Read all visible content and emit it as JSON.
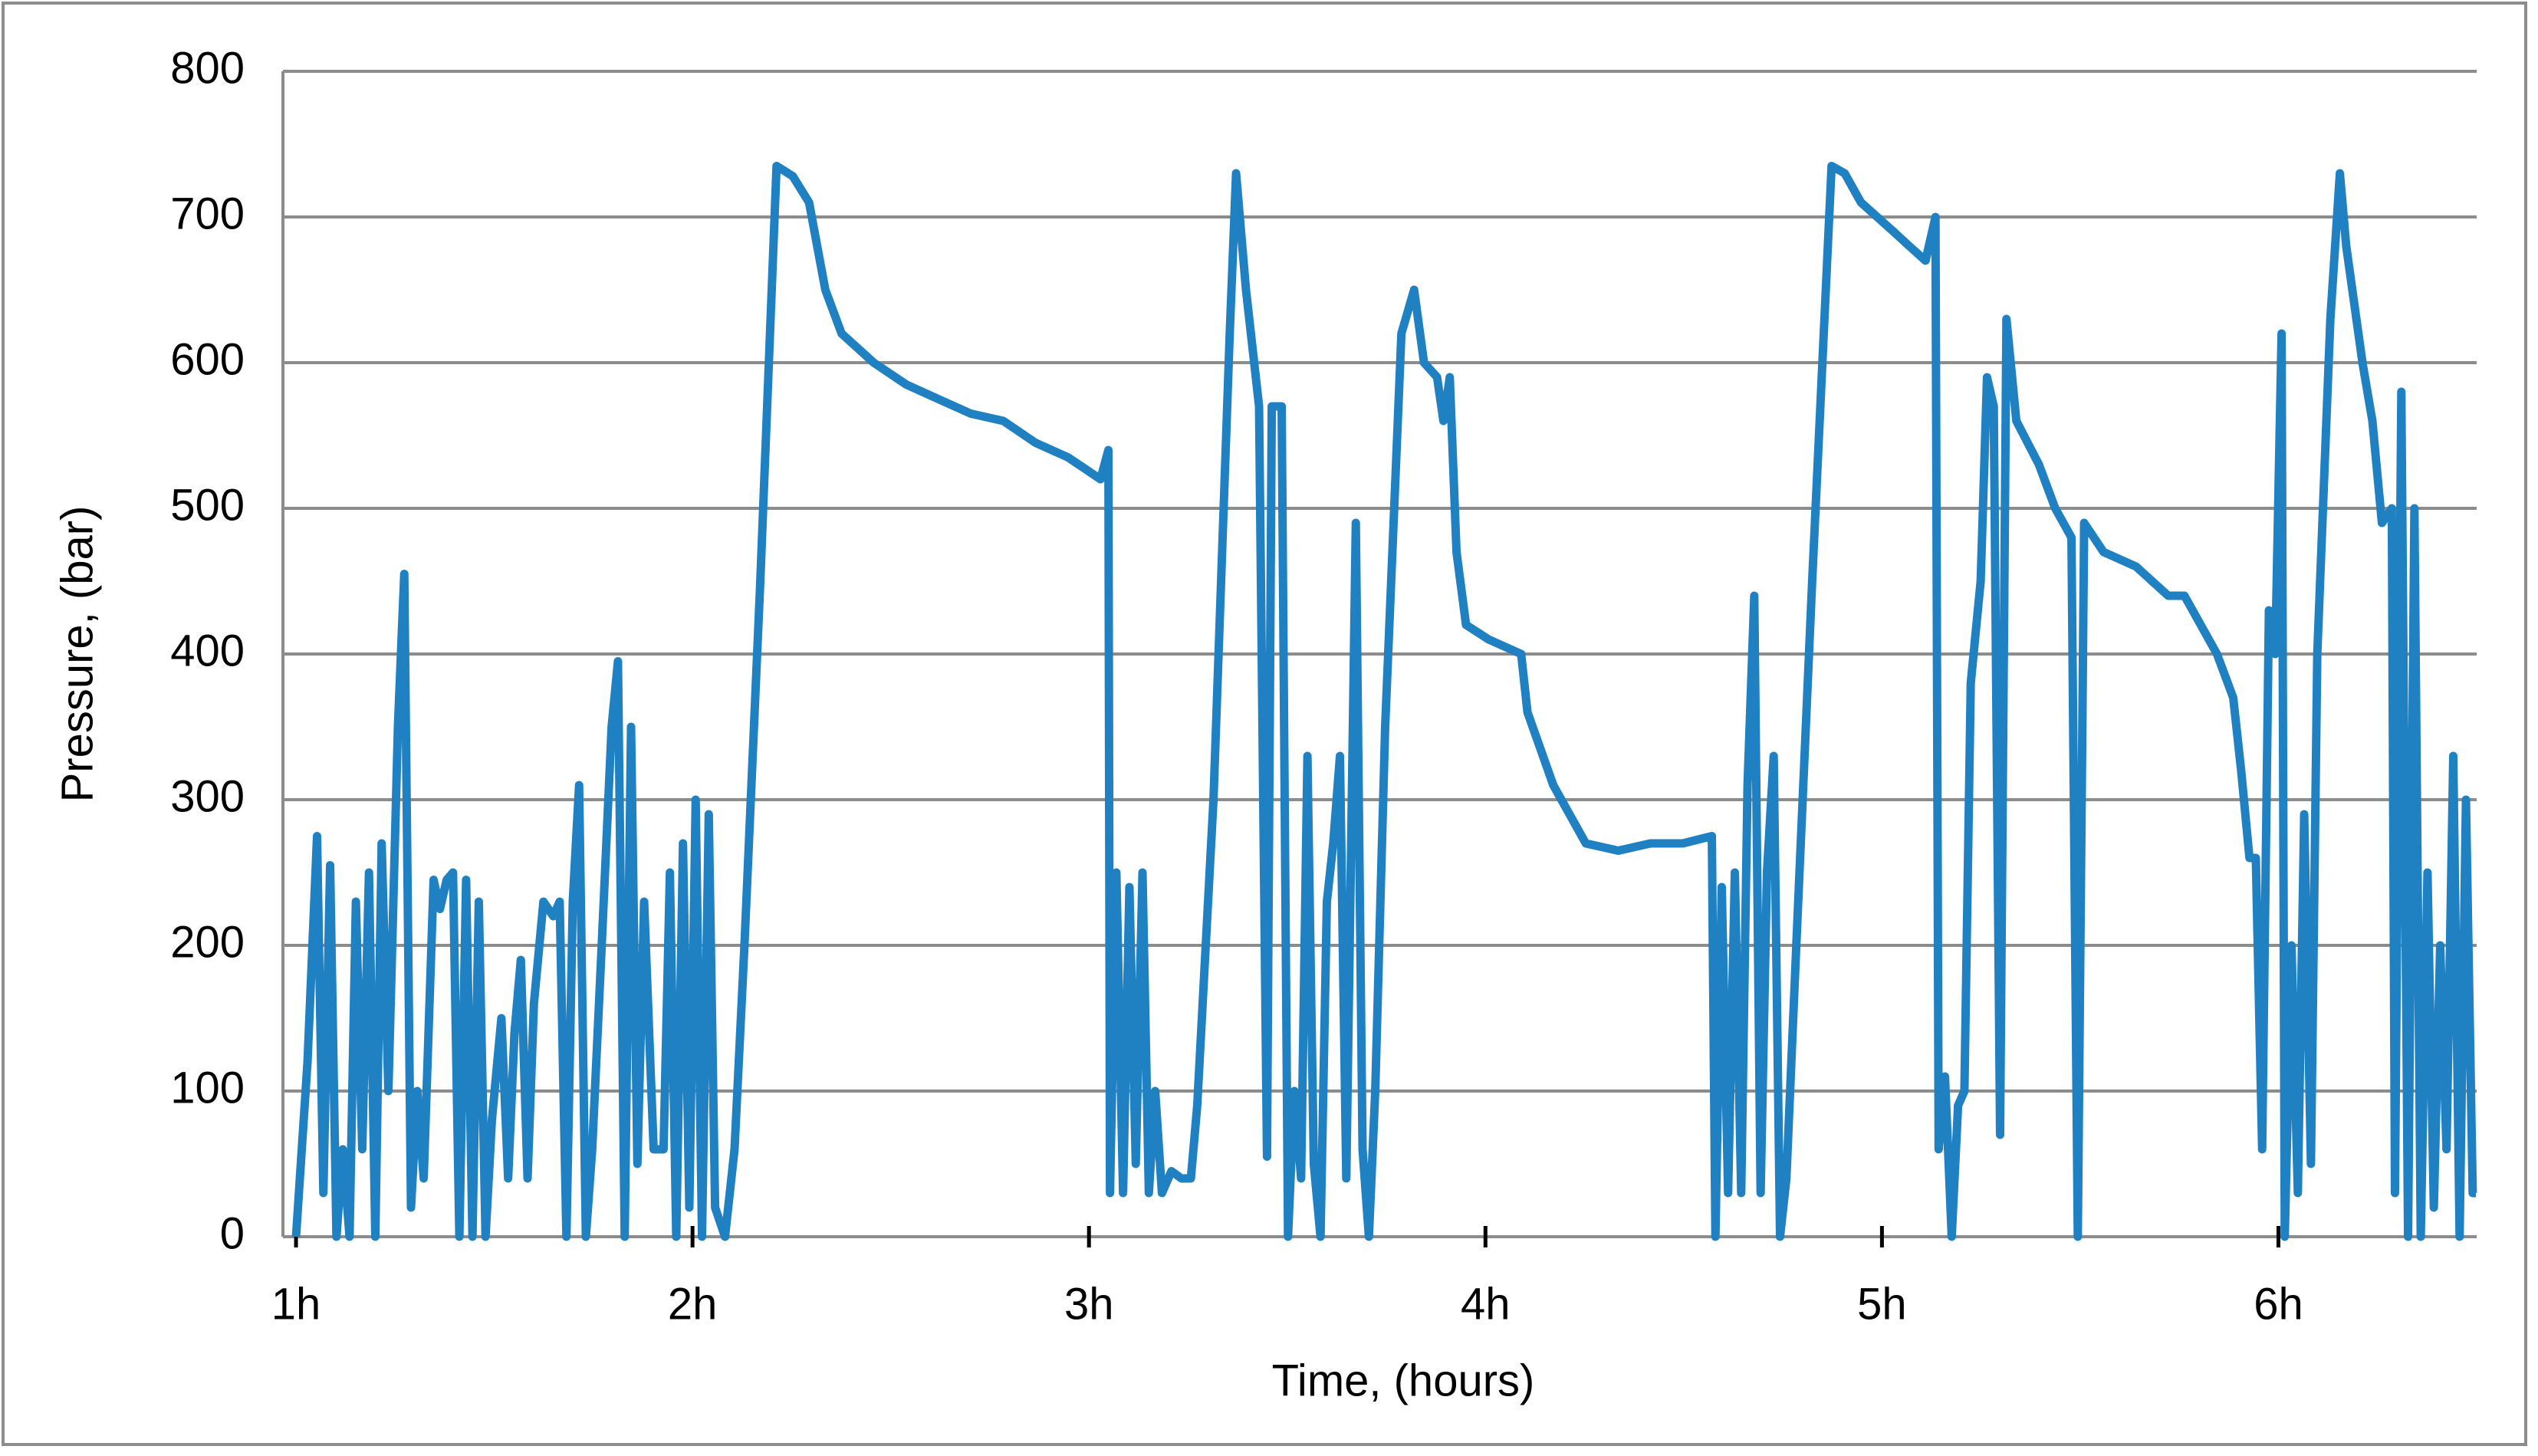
{
  "chart_data": {
    "type": "line",
    "xlabel": "Time, (hours)",
    "ylabel": "Pressure, (bar)",
    "x": [
      1.0,
      1.029,
      1.053,
      1.069,
      1.086,
      1.102,
      1.118,
      1.135,
      1.151,
      1.167,
      1.184,
      1.2,
      1.216,
      1.233,
      1.257,
      1.273,
      1.29,
      1.306,
      1.322,
      1.347,
      1.363,
      1.38,
      1.396,
      1.412,
      1.429,
      1.445,
      1.461,
      1.478,
      1.494,
      1.518,
      1.535,
      1.551,
      1.567,
      1.584,
      1.6,
      1.624,
      1.649,
      1.665,
      1.682,
      1.698,
      1.714,
      1.731,
      1.747,
      1.771,
      1.796,
      1.812,
      1.829,
      1.845,
      1.861,
      1.878,
      1.902,
      1.927,
      1.943,
      1.959,
      1.976,
      1.992,
      2.008,
      2.024,
      2.041,
      2.057,
      2.082,
      2.106,
      2.131,
      2.171,
      2.212,
      2.253,
      2.294,
      2.335,
      2.376,
      2.457,
      2.539,
      2.62,
      2.702,
      2.784,
      2.865,
      2.947,
      3.029,
      3.049,
      3.053,
      3.069,
      3.086,
      3.102,
      3.118,
      3.135,
      3.151,
      3.167,
      3.184,
      3.208,
      3.233,
      3.257,
      3.273,
      3.314,
      3.355,
      3.371,
      3.396,
      3.429,
      3.449,
      3.461,
      3.486,
      3.502,
      3.518,
      3.535,
      3.551,
      3.567,
      3.584,
      3.6,
      3.616,
      3.633,
      3.649,
      3.673,
      3.69,
      3.706,
      3.722,
      3.747,
      3.788,
      3.82,
      3.845,
      3.878,
      3.894,
      3.91,
      3.927,
      3.951,
      4.008,
      4.049,
      4.09,
      4.106,
      4.171,
      4.253,
      4.335,
      4.416,
      4.498,
      4.571,
      4.58,
      4.596,
      4.612,
      4.629,
      4.645,
      4.661,
      4.678,
      4.694,
      4.71,
      4.727,
      4.743,
      4.759,
      4.784,
      4.824,
      4.873,
      4.906,
      4.947,
      4.988,
      5.029,
      5.069,
      5.11,
      5.135,
      5.143,
      5.159,
      5.176,
      5.192,
      5.208,
      5.224,
      5.249,
      5.265,
      5.282,
      5.298,
      5.314,
      5.339,
      5.396,
      5.437,
      5.478,
      5.494,
      5.51,
      5.559,
      5.641,
      5.722,
      5.763,
      5.804,
      5.845,
      5.886,
      5.906,
      5.927,
      5.943,
      5.959,
      5.976,
      5.992,
      6.008,
      6.016,
      6.033,
      6.049,
      6.065,
      6.082,
      6.098,
      6.131,
      6.155,
      6.171,
      6.212,
      6.237,
      6.261,
      6.286,
      6.294,
      6.31,
      6.327,
      6.343,
      6.359,
      6.376,
      6.392,
      6.408,
      6.424,
      6.441,
      6.457,
      6.473,
      6.49,
      6.498
    ],
    "series": [
      {
        "color": "#1f80c2",
        "values": [
          0,
          120,
          275,
          30,
          255,
          0,
          60,
          0,
          230,
          60,
          250,
          0,
          270,
          100,
          350,
          455,
          20,
          100,
          40,
          245,
          225,
          245,
          250,
          0,
          245,
          0,
          230,
          0,
          80,
          150,
          40,
          140,
          190,
          40,
          160,
          230,
          220,
          230,
          0,
          230,
          310,
          0,
          60,
          200,
          350,
          395,
          0,
          350,
          50,
          230,
          60,
          60,
          250,
          0,
          270,
          20,
          300,
          0,
          290,
          20,
          0,
          60,
          200,
          450,
          735,
          728,
          710,
          650,
          620,
          600,
          585,
          575,
          565,
          560,
          545,
          535,
          520,
          540,
          30,
          250,
          30,
          240,
          50,
          250,
          30,
          100,
          30,
          45,
          40,
          40,
          90,
          300,
          620,
          730,
          650,
          570,
          55,
          570,
          570,
          0,
          100,
          40,
          330,
          50,
          0,
          230,
          270,
          330,
          40,
          490,
          60,
          0,
          100,
          350,
          620,
          650,
          600,
          590,
          560,
          590,
          470,
          420,
          410,
          405,
          400,
          360,
          310,
          270,
          265,
          270,
          270,
          275,
          0,
          240,
          30,
          250,
          30,
          310,
          440,
          30,
          250,
          330,
          0,
          40,
          200,
          450,
          735,
          730,
          710,
          700,
          690,
          680,
          670,
          700,
          60,
          110,
          0,
          90,
          100,
          380,
          450,
          590,
          570,
          70,
          630,
          560,
          530,
          500,
          480,
          0,
          490,
          470,
          460,
          440,
          440,
          420,
          400,
          370,
          320,
          260,
          260,
          60,
          430,
          400,
          620,
          0,
          200,
          30,
          290,
          50,
          400,
          630,
          730,
          680,
          600,
          560,
          490,
          500,
          30,
          580,
          0,
          500,
          0,
          250,
          20,
          200,
          60,
          330,
          0,
          300,
          30,
          30
        ]
      }
    ],
    "xlim": [
      0.967,
      6.5
    ],
    "xticks": [
      {
        "value": 1,
        "label": "1h"
      },
      {
        "value": 2,
        "label": "2h"
      },
      {
        "value": 3,
        "label": "3h"
      },
      {
        "value": 4,
        "label": "4h"
      },
      {
        "value": 5,
        "label": "5h"
      },
      {
        "value": 6,
        "label": "6h"
      }
    ],
    "ylim": [
      0,
      800
    ],
    "yticks": [
      0,
      100,
      200,
      300,
      400,
      500,
      600,
      700,
      800
    ],
    "grid": true
  }
}
